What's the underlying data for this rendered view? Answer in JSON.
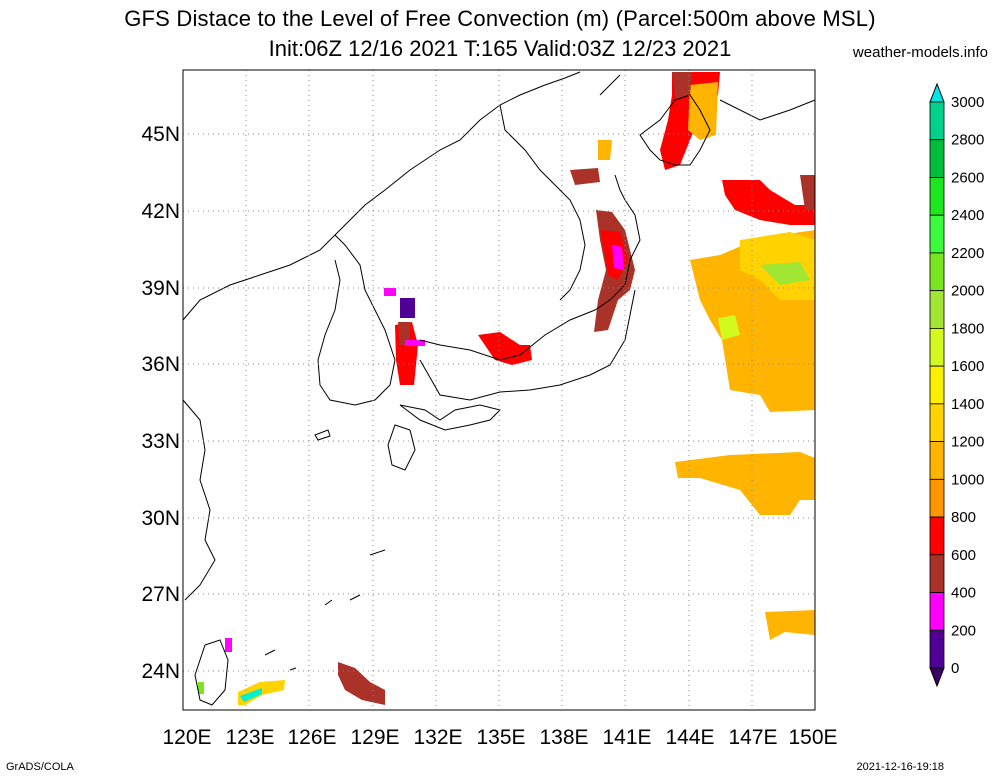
{
  "title_line1": "GFS Distace to the Level of Free Convection (m) (Parcel:500m above MSL)",
  "title_line2": "Init:06Z 12/16 2021 T:165 Valid:03Z 12/23 2021",
  "site": "weather-models.info",
  "footer_left": "GrADS/COLA",
  "footer_right": "2021-12-16-19:18",
  "map": {
    "lat_labels": [
      "45N",
      "42N",
      "39N",
      "36N",
      "33N",
      "30N",
      "27N",
      "24N"
    ],
    "lon_labels": [
      "120E",
      "123E",
      "126E",
      "129E",
      "132E",
      "135E",
      "138E",
      "141E",
      "144E",
      "147E",
      "150E"
    ],
    "lon_range": [
      120,
      150
    ],
    "lat_range": [
      22.5,
      47.5
    ]
  },
  "colorbar": {
    "labels": [
      "3000",
      "2800",
      "2600",
      "2400",
      "2200",
      "2000",
      "1800",
      "1600",
      "1400",
      "1200",
      "1000",
      "800",
      "600",
      "400",
      "200",
      "0"
    ],
    "colors": [
      "#00f0d0",
      "#00d28c",
      "#00be3c",
      "#1ee61e",
      "#3cfa3c",
      "#78e61e",
      "#a0e632",
      "#d2fa1e",
      "#faf000",
      "#ffd200",
      "#ffb400",
      "#ff9600",
      "#ff0000",
      "#aa3228",
      "#ff00ff",
      "#500096"
    ],
    "top_arrow_color": "#00e6e6",
    "bottom_arrow_color": "#3c0064"
  }
}
